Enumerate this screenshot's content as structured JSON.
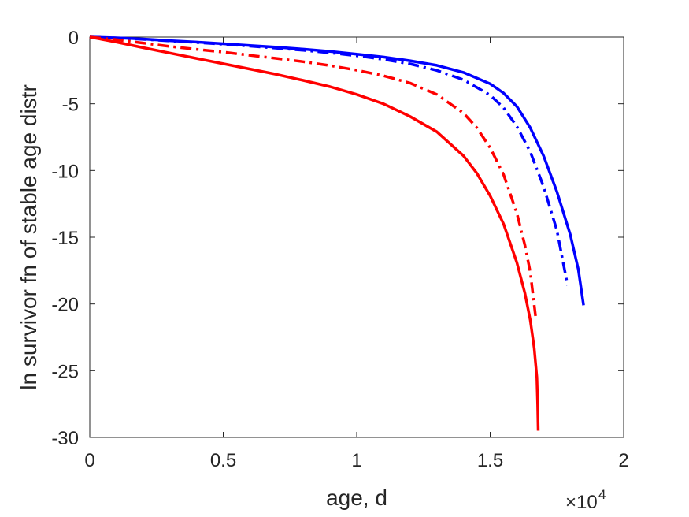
{
  "chart_data": {
    "type": "line",
    "title": "",
    "xlabel": "age, d",
    "ylabel": "ln survivor fn of stable age distr",
    "xlim": [
      0,
      20000
    ],
    "ylim": [
      -30,
      0
    ],
    "x_scale_exponent": "4",
    "x_scale_prefix": "×10",
    "x_ticks": [
      0,
      5000,
      10000,
      15000,
      20000
    ],
    "x_tick_labels": [
      "0",
      "0.5",
      "1",
      "1.5",
      "2"
    ],
    "y_ticks": [
      0,
      -5,
      -10,
      -15,
      -20,
      -25,
      -30
    ],
    "y_tick_labels": [
      "0",
      "-5",
      "-10",
      "-15",
      "-20",
      "-25",
      "-30"
    ],
    "grid": false,
    "legend": "none",
    "series": [
      {
        "color": "#0000ff",
        "style": "solid",
        "x": [
          0,
          1000,
          2000,
          3000,
          4000,
          5000,
          6000,
          7000,
          8000,
          9000,
          10000,
          11000,
          12000,
          13000,
          14000,
          15000,
          15500,
          16000,
          16500,
          17000,
          17500,
          18000,
          18300,
          18500
        ],
        "y": [
          0,
          -0.06,
          -0.15,
          -0.27,
          -0.38,
          -0.5,
          -0.63,
          -0.76,
          -0.91,
          -1.08,
          -1.28,
          -1.5,
          -1.78,
          -2.12,
          -2.65,
          -3.5,
          -4.2,
          -5.2,
          -6.8,
          -8.9,
          -11.6,
          -14.8,
          -17.4,
          -20.1
        ]
      },
      {
        "color": "#0000ff",
        "style": "dashdot",
        "x": [
          0,
          1000,
          2000,
          3000,
          4000,
          5000,
          6000,
          7000,
          8000,
          9000,
          10000,
          11000,
          12000,
          13000,
          14000,
          15000,
          15500,
          16000,
          16500,
          17000,
          17500,
          17900
        ],
        "y": [
          0,
          -0.07,
          -0.17,
          -0.29,
          -0.41,
          -0.54,
          -0.68,
          -0.83,
          -0.99,
          -1.18,
          -1.4,
          -1.67,
          -2.01,
          -2.5,
          -3.2,
          -4.35,
          -5.3,
          -6.7,
          -8.6,
          -11.2,
          -14.5,
          -18.6
        ]
      },
      {
        "color": "#ff0000",
        "style": "dashdot",
        "x": [
          0,
          1000,
          2000,
          3000,
          4000,
          5000,
          6000,
          7000,
          8000,
          9000,
          10000,
          11000,
          12000,
          13000,
          14000,
          14500,
          15000,
          15500,
          16000,
          16300,
          16500,
          16700
        ],
        "y": [
          0,
          -0.2,
          -0.45,
          -0.7,
          -0.92,
          -1.13,
          -1.37,
          -1.6,
          -1.85,
          -2.14,
          -2.48,
          -2.9,
          -3.45,
          -4.3,
          -5.7,
          -6.8,
          -8.3,
          -10.3,
          -13.2,
          -15.6,
          -17.6,
          -20.9
        ]
      },
      {
        "color": "#ff0000",
        "style": "solid",
        "x": [
          0,
          1000,
          2000,
          3000,
          4000,
          5000,
          6000,
          7000,
          8000,
          9000,
          10000,
          11000,
          12000,
          13000,
          14000,
          14500,
          15000,
          15500,
          16000,
          16300,
          16500,
          16650,
          16750,
          16780,
          16800
        ],
        "y": [
          0,
          -0.38,
          -0.8,
          -1.2,
          -1.6,
          -2.0,
          -2.4,
          -2.8,
          -3.25,
          -3.72,
          -4.3,
          -5.0,
          -5.95,
          -7.1,
          -8.9,
          -10.2,
          -11.9,
          -14.0,
          -16.9,
          -19.2,
          -21.2,
          -23.3,
          -25.5,
          -27.5,
          -29.5
        ]
      }
    ]
  }
}
